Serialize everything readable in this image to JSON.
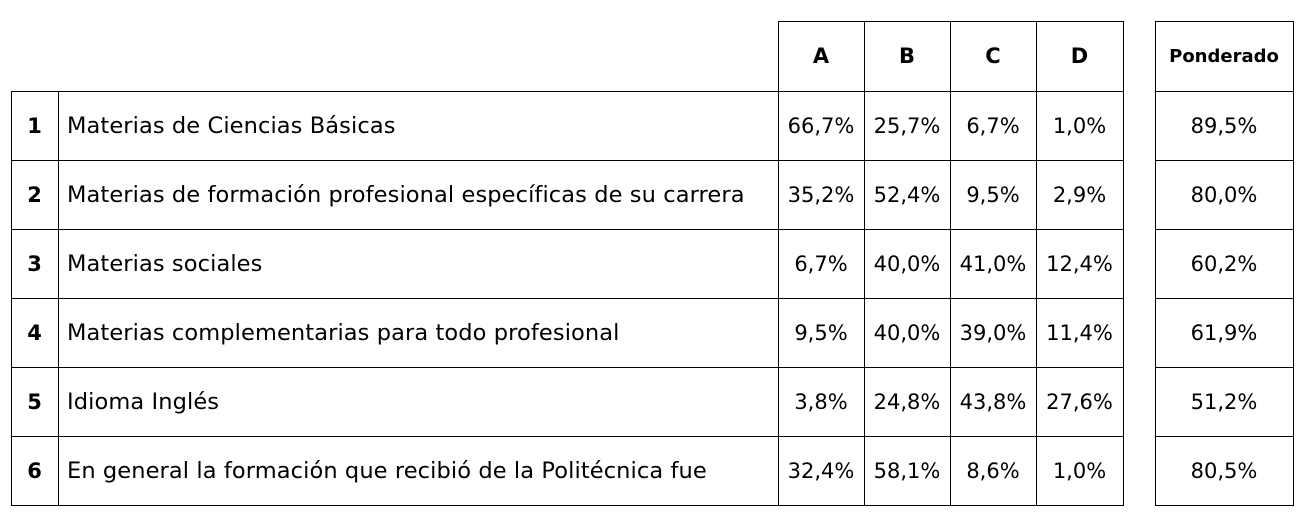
{
  "columns": [
    "A",
    "B",
    "C",
    "D"
  ],
  "weighted_header": "Ponderado",
  "rows": [
    {
      "num": "1",
      "label": "Materias de Ciencias Básicas",
      "values": [
        "66,7%",
        "25,7%",
        "6,7%",
        "1,0%"
      ],
      "weighted": "89,5%"
    },
    {
      "num": "2",
      "label": "Materias de formación profesional específicas de su carrera",
      "values": [
        "35,2%",
        "52,4%",
        "9,5%",
        "2,9%"
      ],
      "weighted": "80,0%"
    },
    {
      "num": "3",
      "label": "Materias sociales",
      "values": [
        "6,7%",
        "40,0%",
        "41,0%",
        "12,4%"
      ],
      "weighted": "60,2%"
    },
    {
      "num": "4",
      "label": "Materias complementarias para todo profesional",
      "values": [
        "9,5%",
        "40,0%",
        "39,0%",
        "11,4%"
      ],
      "weighted": "61,9%"
    },
    {
      "num": "5",
      "label": "Idioma Inglés",
      "values": [
        "3,8%",
        "24,8%",
        "43,8%",
        "27,6%"
      ],
      "weighted": "51,2%"
    },
    {
      "num": "6",
      "label": "En general la formación que recibió de la Politécnica fue",
      "values": [
        "32,4%",
        "58,1%",
        "8,6%",
        "1,0%"
      ],
      "weighted": "80,5%"
    }
  ]
}
